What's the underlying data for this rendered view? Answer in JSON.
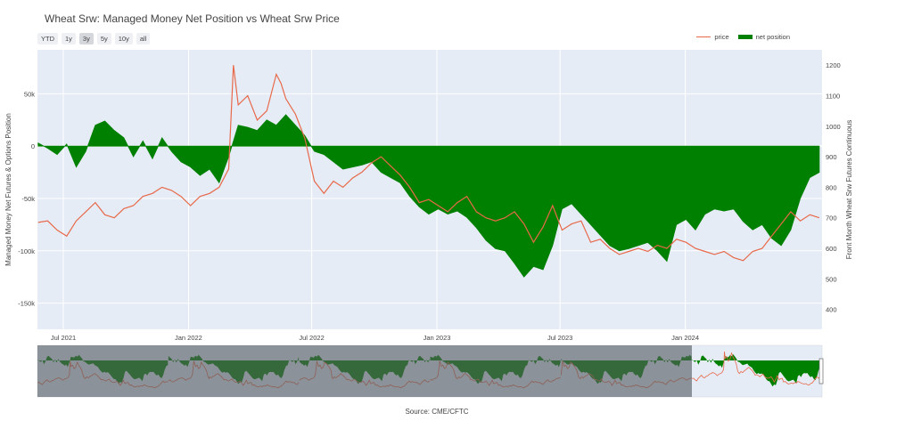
{
  "title": "Wheat Srw: Managed Money Net Position vs Wheat Srw Price",
  "range_buttons": [
    "YTD",
    "1y",
    "3y",
    "5y",
    "10y",
    "all"
  ],
  "active_range": "3y",
  "legend": {
    "price": "price",
    "net": "net position"
  },
  "source": "Source: CME/CFTC",
  "colors": {
    "price": "#e8694a",
    "net": "#008000",
    "plot_bg": "#e5ecf6"
  },
  "chart_data": {
    "type": "area",
    "title": "Wheat Srw: Managed Money Net Position vs Wheat Srw Price",
    "ylabel_left": "Managed Money Net Futures & Options Position",
    "ylabel_right": "Front Month Wheat Srw Futures Continuous",
    "x_ticks": [
      "Jul 2021",
      "Jan 2022",
      "Jul 2022",
      "Jan 2023",
      "Jul 2023",
      "Jan 2024"
    ],
    "y_left_ticks": [
      "50k",
      "0",
      "-50k",
      "-100k",
      "-150k"
    ],
    "y_left_range": [
      -175000,
      92000
    ],
    "y_right_ticks": [
      "1200",
      "1100",
      "1000",
      "900",
      "800",
      "700",
      "600",
      "500",
      "400"
    ],
    "y_right_range": [
      335,
      1250
    ],
    "x_range": [
      "2021-05-24",
      "2024-07-20"
    ],
    "grid": true,
    "legend_position": "top-right",
    "series": [
      {
        "name": "net position",
        "x": [
          "2021-05-25",
          "2021-06-08",
          "2021-06-22",
          "2021-07-06",
          "2021-07-20",
          "2021-08-03",
          "2021-08-17",
          "2021-08-31",
          "2021-09-14",
          "2021-09-28",
          "2021-10-12",
          "2021-10-26",
          "2021-11-09",
          "2021-11-23",
          "2021-12-07",
          "2021-12-21",
          "2022-01-04",
          "2022-01-18",
          "2022-02-01",
          "2022-02-15",
          "2022-03-01",
          "2022-03-15",
          "2022-03-29",
          "2022-04-12",
          "2022-04-26",
          "2022-05-10",
          "2022-05-24",
          "2022-06-07",
          "2022-06-21",
          "2022-07-05",
          "2022-07-19",
          "2022-08-02",
          "2022-08-16",
          "2022-08-30",
          "2022-09-13",
          "2022-09-27",
          "2022-10-11",
          "2022-10-25",
          "2022-11-08",
          "2022-11-22",
          "2022-12-06",
          "2022-12-20",
          "2023-01-03",
          "2023-01-17",
          "2023-01-31",
          "2023-02-14",
          "2023-02-28",
          "2023-03-14",
          "2023-03-28",
          "2023-04-11",
          "2023-04-25",
          "2023-05-09",
          "2023-05-23",
          "2023-06-06",
          "2023-06-20",
          "2023-07-04",
          "2023-07-18",
          "2023-08-01",
          "2023-08-15",
          "2023-08-29",
          "2023-09-12",
          "2023-09-26",
          "2023-10-10",
          "2023-10-24",
          "2023-11-07",
          "2023-11-21",
          "2023-12-05",
          "2023-12-19",
          "2024-01-02",
          "2024-01-16",
          "2024-01-30",
          "2024-02-13",
          "2024-02-27",
          "2024-03-12",
          "2024-03-26",
          "2024-04-09",
          "2024-04-23",
          "2024-05-07",
          "2024-05-21",
          "2024-06-04",
          "2024-06-18",
          "2024-07-02",
          "2024-07-16"
        ],
        "values": [
          3000,
          -2000,
          -8000,
          2000,
          -20000,
          -5000,
          20000,
          24000,
          15000,
          8000,
          -10000,
          5000,
          -12000,
          8000,
          -5000,
          -15000,
          -20000,
          -28000,
          -22000,
          -35000,
          -10000,
          20000,
          18000,
          15000,
          25000,
          20000,
          30000,
          20000,
          10000,
          -5000,
          -8000,
          -15000,
          -22000,
          -20000,
          -18000,
          -15000,
          -25000,
          -30000,
          -35000,
          -48000,
          -58000,
          -65000,
          -60000,
          -65000,
          -62000,
          -68000,
          -78000,
          -90000,
          -98000,
          -100000,
          -112000,
          -125000,
          -115000,
          -118000,
          -95000,
          -60000,
          -55000,
          -65000,
          -75000,
          -85000,
          -95000,
          -100000,
          -98000,
          -95000,
          -92000,
          -100000,
          -110000,
          -75000,
          -70000,
          -80000,
          -65000,
          -60000,
          -62000,
          -60000,
          -72000,
          -80000,
          -75000,
          -88000,
          -95000,
          -80000,
          -50000,
          -30000,
          -25000
        ]
      },
      {
        "name": "price",
        "x": [
          "2021-05-25",
          "2021-06-08",
          "2021-06-22",
          "2021-07-06",
          "2021-07-20",
          "2021-08-03",
          "2021-08-17",
          "2021-08-31",
          "2021-09-14",
          "2021-09-28",
          "2021-10-12",
          "2021-10-26",
          "2021-11-09",
          "2021-11-23",
          "2021-12-07",
          "2021-12-21",
          "2022-01-04",
          "2022-01-18",
          "2022-02-01",
          "2022-02-15",
          "2022-03-01",
          "2022-03-08",
          "2022-03-15",
          "2022-03-29",
          "2022-04-12",
          "2022-04-26",
          "2022-05-10",
          "2022-05-17",
          "2022-05-24",
          "2022-06-07",
          "2022-06-21",
          "2022-07-05",
          "2022-07-19",
          "2022-08-02",
          "2022-08-16",
          "2022-08-30",
          "2022-09-13",
          "2022-09-27",
          "2022-10-11",
          "2022-10-25",
          "2022-11-08",
          "2022-11-22",
          "2022-12-06",
          "2022-12-20",
          "2023-01-03",
          "2023-01-17",
          "2023-01-31",
          "2023-02-14",
          "2023-02-28",
          "2023-03-14",
          "2023-03-28",
          "2023-04-11",
          "2023-04-25",
          "2023-05-09",
          "2023-05-23",
          "2023-06-06",
          "2023-06-20",
          "2023-07-04",
          "2023-07-18",
          "2023-08-01",
          "2023-08-15",
          "2023-08-29",
          "2023-09-12",
          "2023-09-26",
          "2023-10-10",
          "2023-10-24",
          "2023-11-07",
          "2023-11-21",
          "2023-12-05",
          "2023-12-19",
          "2024-01-02",
          "2024-01-16",
          "2024-01-30",
          "2024-02-13",
          "2024-02-27",
          "2024-03-12",
          "2024-03-26",
          "2024-04-09",
          "2024-04-23",
          "2024-05-07",
          "2024-05-21",
          "2024-06-04",
          "2024-06-18",
          "2024-07-02",
          "2024-07-16"
        ],
        "values": [
          685,
          690,
          660,
          640,
          690,
          720,
          750,
          710,
          700,
          730,
          740,
          770,
          780,
          800,
          790,
          770,
          740,
          770,
          780,
          800,
          860,
          1200,
          1070,
          1100,
          1020,
          1050,
          1170,
          1140,
          1090,
          1040,
          960,
          820,
          780,
          820,
          800,
          830,
          850,
          880,
          900,
          870,
          840,
          800,
          750,
          760,
          740,
          720,
          750,
          770,
          720,
          700,
          690,
          700,
          720,
          680,
          620,
          670,
          740,
          660,
          680,
          690,
          620,
          630,
          600,
          580,
          590,
          600,
          590,
          610,
          600,
          630,
          620,
          600,
          590,
          580,
          590,
          570,
          560,
          590,
          600,
          640,
          680,
          720,
          690,
          710,
          700
        ]
      }
    ]
  }
}
